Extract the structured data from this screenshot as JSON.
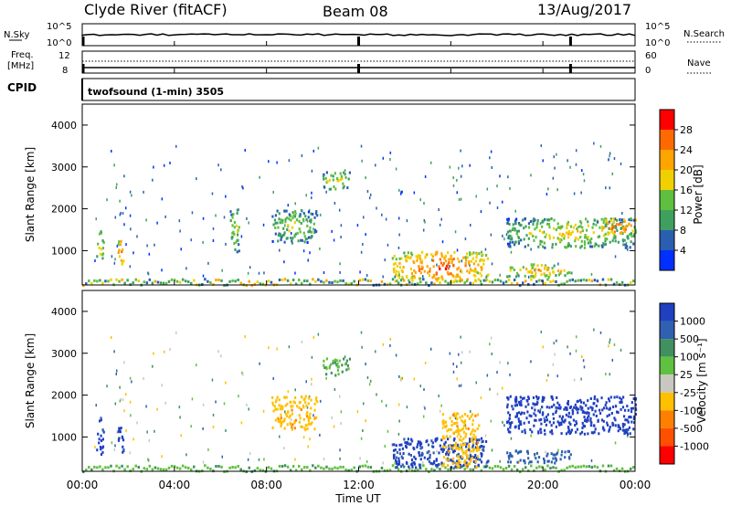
{
  "header": {
    "radar": "Clyde River (fitACF)",
    "beam": "Beam 08",
    "date": "13/Aug/2017"
  },
  "panel_nsky": {
    "left_label": "N.Sky",
    "right_label": "N.Search",
    "left_ticks": [
      "10^5",
      "10^0"
    ],
    "right_ticks": [
      "10^5",
      "10^0"
    ]
  },
  "panel_freq": {
    "left_label_1": "Freq.",
    "left_label_2": "[MHz]",
    "left_ticks": [
      "12",
      "8"
    ],
    "right_label": "Nave",
    "right_ticks": [
      "60",
      "0"
    ]
  },
  "cpid": {
    "label": "CPID",
    "program": "twofsound (1-min) 3505"
  },
  "power_panel": {
    "ylabel": "Slant Range [km]",
    "yticks": [
      "4000",
      "3000",
      "2000",
      "1000"
    ],
    "colorbar_label": "Power [dB]",
    "colorbar_ticks": [
      "28",
      "24",
      "20",
      "16",
      "12",
      "8",
      "4"
    ],
    "colorbar_colors": [
      "#ff0000",
      "#ff6a00",
      "#ffa500",
      "#f0d000",
      "#5fbf3f",
      "#3f9f5f",
      "#2a5faf",
      "#0030ff"
    ]
  },
  "velocity_panel": {
    "ylabel": "Slant Range [km]",
    "yticks": [
      "4000",
      "3000",
      "2000",
      "1000"
    ],
    "colorbar_label": "Velocity [m s⁻¹]",
    "colorbar_ticks": [
      "1000",
      "500",
      "100",
      "25",
      "-25",
      "-100",
      "-500",
      "-1000"
    ],
    "colorbar_colors": [
      "#2040c0",
      "#3060b0",
      "#409060",
      "#60c040",
      "#c8c8c0",
      "#ffc000",
      "#ff8000",
      "#ff5000",
      "#ff0000"
    ]
  },
  "xaxis": {
    "ticks": [
      "00:00",
      "04:00",
      "08:00",
      "12:00",
      "16:00",
      "20:00",
      "00:00"
    ],
    "label": "Time UT"
  },
  "chart_data": {
    "type": "heatmap",
    "x_range_hours": [
      0,
      24
    ],
    "y_range_km": [
      180,
      4500
    ],
    "power_db_range": [
      0,
      32
    ],
    "velocity_range": [
      -1000,
      1000
    ],
    "power_features": [
      {
        "t0": 0.6,
        "t1": 0.9,
        "r0": 800,
        "r1": 1500,
        "db": 16
      },
      {
        "t0": 1.5,
        "t1": 1.8,
        "r0": 700,
        "r1": 1300,
        "db": 20
      },
      {
        "t0": 6.4,
        "t1": 6.8,
        "r0": 1000,
        "r1": 2000,
        "db": 14
      },
      {
        "t0": 8.2,
        "t1": 10.2,
        "r0": 1200,
        "r1": 2000,
        "db": 12
      },
      {
        "t0": 10.4,
        "t1": 11.6,
        "r0": 2500,
        "r1": 2900,
        "db": 14
      },
      {
        "t0": 13.4,
        "t1": 17.6,
        "r0": 300,
        "r1": 1000,
        "db": 22
      },
      {
        "t0": 18.4,
        "t1": 21.2,
        "r0": 400,
        "r1": 700,
        "db": 18
      },
      {
        "t0": 18.4,
        "t1": 24,
        "r0": 1100,
        "r1": 1800,
        "db": 14
      },
      {
        "t0": 22.5,
        "t1": 24,
        "r0": 1400,
        "r1": 1800,
        "db": 22
      }
    ],
    "velocity_features": [
      {
        "t0": 0.6,
        "t1": 0.9,
        "r0": 600,
        "r1": 1500,
        "v": 600
      },
      {
        "t0": 1.5,
        "t1": 1.8,
        "r0": 600,
        "r1": 1300,
        "v": 600
      },
      {
        "t0": 8.2,
        "t1": 10.2,
        "r0": 1200,
        "r1": 2000,
        "v": -400
      },
      {
        "t0": 10.4,
        "t1": 11.6,
        "r0": 2500,
        "r1": 2900,
        "v": 10
      },
      {
        "t0": 13.4,
        "t1": 17.6,
        "r0": 300,
        "r1": 1000,
        "v": 600
      },
      {
        "t0": 15.6,
        "t1": 17.2,
        "r0": 300,
        "r1": 1600,
        "v": -400
      },
      {
        "t0": 18.4,
        "t1": 21.2,
        "r0": 400,
        "r1": 700,
        "v": 300
      },
      {
        "t0": 18.4,
        "t1": 24,
        "r0": 1100,
        "r1": 2000,
        "v": 900
      }
    ]
  }
}
